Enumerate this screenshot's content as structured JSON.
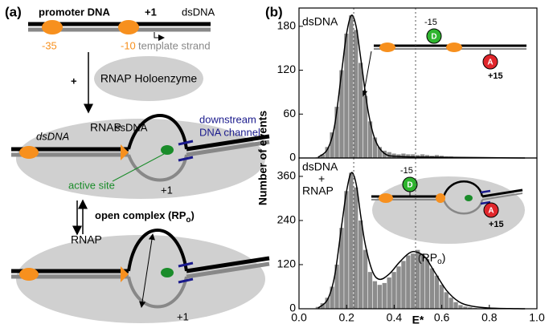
{
  "panel_a": {
    "label": "(a)",
    "promoter": "promoter DNA",
    "plus1_top": "+1",
    "dsdna_top": "dsDNA",
    "m35": "-35",
    "m10": "-10",
    "template": "template strand",
    "plus": "+",
    "holo": "RNAP Holoenzyme",
    "rnap_mid": "RNAP",
    "dsdna_mid": "dsDNA",
    "ssdna": "ssDNA",
    "downstream": "downstream",
    "channel": "DNA channel",
    "active": "active site",
    "plus1_mid": "+1",
    "open_a": "open complex (RP",
    "open_sub": "o",
    "open_b": ")",
    "rnap_bot": "RNAP",
    "plus1_bot": "+1"
  },
  "panel_b_label": "(b)",
  "chart_data": [
    {
      "type": "histogram",
      "label": "dsDNA",
      "color": "#8c8c8c",
      "bins": [
        0.07,
        0.09,
        0.11,
        0.13,
        0.15,
        0.17,
        0.19,
        0.21,
        0.23,
        0.25,
        0.27,
        0.29,
        0.31,
        0.33,
        0.35,
        0.37,
        0.39,
        0.41,
        0.43,
        0.45,
        0.47,
        0.49,
        0.51,
        0.53,
        0.55,
        0.57,
        0.59,
        0.61,
        0.63,
        0.65,
        0.67,
        0.69,
        0.71,
        0.73,
        0.75,
        0.77,
        0.79
      ],
      "counts": [
        1,
        5,
        15,
        35,
        70,
        120,
        170,
        195,
        175,
        130,
        85,
        50,
        28,
        15,
        10,
        8,
        6,
        5,
        6,
        5,
        5,
        4,
        5,
        4,
        3,
        4,
        3,
        2,
        2,
        1,
        1,
        1,
        1,
        0,
        1,
        0
      ],
      "fit": {
        "x": [
          0.08,
          0.12,
          0.15,
          0.18,
          0.2,
          0.22,
          0.24,
          0.26,
          0.29,
          0.32,
          0.36,
          0.42,
          0.6,
          0.95
        ],
        "values": [
          1,
          12,
          45,
          120,
          170,
          195,
          180,
          135,
          65,
          25,
          6,
          2,
          1,
          0
        ]
      },
      "vlines": [
        0.23,
        0.49
      ],
      "xlim": [
        0,
        1
      ],
      "ylim": [
        0,
        205
      ],
      "yticks": [
        0,
        60,
        120,
        180
      ],
      "inset": {
        "d": "D",
        "a": "A",
        "m15": "-15",
        "p15": "+15"
      }
    },
    {
      "type": "histogram",
      "label_lines": [
        "dsDNA",
        "+",
        "RNAP"
      ],
      "color": "#8c8c8c",
      "bins": [
        0.07,
        0.09,
        0.11,
        0.13,
        0.15,
        0.17,
        0.19,
        0.21,
        0.23,
        0.25,
        0.27,
        0.29,
        0.31,
        0.33,
        0.35,
        0.37,
        0.39,
        0.41,
        0.43,
        0.45,
        0.47,
        0.49,
        0.51,
        0.53,
        0.55,
        0.57,
        0.59,
        0.61,
        0.63,
        0.65,
        0.67,
        0.69,
        0.71,
        0.73,
        0.75,
        0.77,
        0.79
      ],
      "counts": [
        5,
        15,
        30,
        60,
        120,
        220,
        320,
        370,
        330,
        240,
        160,
        100,
        75,
        65,
        70,
        85,
        100,
        115,
        130,
        145,
        150,
        160,
        150,
        135,
        110,
        90,
        65,
        45,
        30,
        18,
        10,
        6,
        4,
        2,
        1,
        1
      ],
      "fit": {
        "x": [
          0.08,
          0.12,
          0.15,
          0.18,
          0.2,
          0.22,
          0.24,
          0.26,
          0.28,
          0.31,
          0.34,
          0.38,
          0.42,
          0.46,
          0.49,
          0.53,
          0.57,
          0.62,
          0.67,
          0.72,
          0.8,
          0.95
        ],
        "values": [
          2,
          25,
          90,
          230,
          320,
          370,
          340,
          250,
          170,
          100,
          80,
          95,
          125,
          150,
          155,
          140,
          100,
          50,
          20,
          8,
          2,
          0
        ]
      },
      "vlines": [
        0.23,
        0.49
      ],
      "xlim": [
        0,
        1
      ],
      "ylim": [
        0,
        410
      ],
      "yticks": [
        0,
        120,
        240,
        360
      ],
      "xticks": [
        {
          "value": 0,
          "label": "0.0"
        },
        0.2,
        0.4,
        0.6,
        0.8,
        {
          "value": 1,
          "label": "1.0"
        }
      ],
      "xlabel": "E*",
      "ylabel": "Number of events",
      "inset": {
        "d": "D",
        "a": "A",
        "m15": "-15",
        "p15": "+15",
        "rpo_a": "(RP",
        "rpo_sub": "o",
        "rpo_b": ")"
      }
    }
  ]
}
